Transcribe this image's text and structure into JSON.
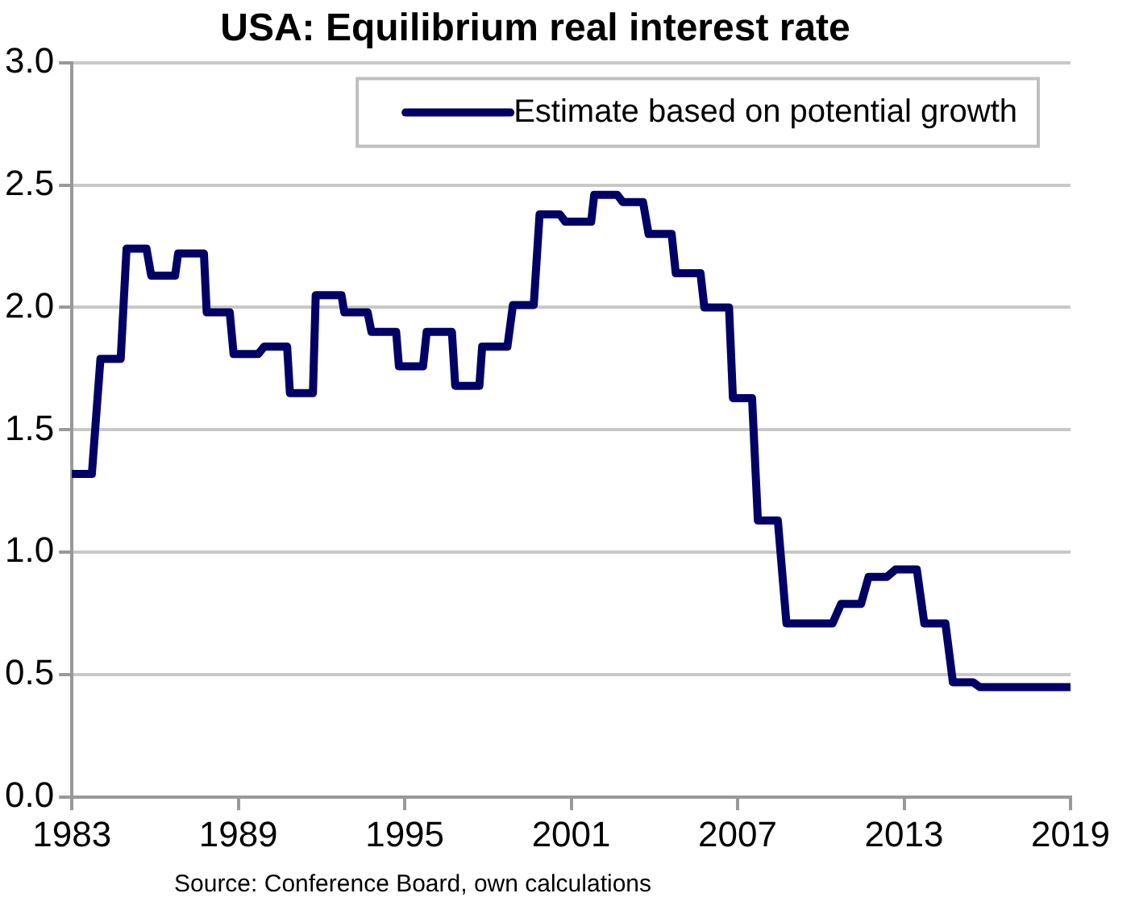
{
  "chart_data": {
    "type": "line",
    "title": "USA: Equilibrium real interest rate",
    "x": [
      1983,
      1983.72,
      1984.03,
      1984.76,
      1984.97,
      1985.69,
      1985.86,
      1986.72,
      1986.83,
      1987.76,
      1987.86,
      1988.69,
      1988.83,
      1989.72,
      1989.93,
      1990.76,
      1990.86,
      1991.69,
      1991.79,
      1992.72,
      1992.82,
      1993.66,
      1993.8,
      1994.69,
      1994.79,
      1995.66,
      1995.79,
      1996.7,
      1996.82,
      1997.69,
      1997.79,
      1998.7,
      1998.9,
      1999.65,
      1999.86,
      2000.59,
      2000.79,
      2001.72,
      2001.83,
      2002.66,
      2002.86,
      2003.59,
      2003.79,
      2004.62,
      2004.77,
      2005.66,
      2005.8,
      2006.69,
      2006.83,
      2007.52,
      2007.73,
      2008.45,
      2008.76,
      2010.42,
      2010.73,
      2011.45,
      2011.72,
      2012.38,
      2012.69,
      2013.46,
      2013.73,
      2014.49,
      2014.76,
      2015.48,
      2015.73,
      2019
    ],
    "series": [
      {
        "name": "Estimate based on potential growth",
        "color": "#000066",
        "values": [
          1.32,
          1.32,
          1.79,
          1.79,
          2.24,
          2.24,
          2.13,
          2.13,
          2.22,
          2.22,
          1.98,
          1.98,
          1.81,
          1.81,
          1.84,
          1.84,
          1.65,
          1.65,
          2.05,
          2.05,
          1.98,
          1.98,
          1.9,
          1.9,
          1.76,
          1.76,
          1.9,
          1.9,
          1.68,
          1.68,
          1.84,
          1.84,
          2.01,
          2.01,
          2.38,
          2.38,
          2.35,
          2.35,
          2.46,
          2.46,
          2.43,
          2.43,
          2.3,
          2.3,
          2.14,
          2.14,
          2.0,
          2.0,
          1.63,
          1.63,
          1.13,
          1.13,
          0.71,
          0.71,
          0.79,
          0.79,
          0.9,
          0.9,
          0.93,
          0.93,
          0.71,
          0.71,
          0.47,
          0.47,
          0.45,
          0.45
        ]
      }
    ],
    "xlim": [
      1983,
      2019
    ],
    "xticks": [
      1983,
      1989,
      1995,
      2001,
      2007,
      2013,
      2019
    ],
    "ylim": [
      0,
      3
    ],
    "yticks": [
      {
        "value": 0,
        "label": "0.0"
      },
      {
        "value": 0.5,
        "label": "0.5"
      },
      {
        "value": 1,
        "label": "1.0"
      },
      {
        "value": 1.5,
        "label": "1.5"
      },
      {
        "value": 2,
        "label": "2.0"
      },
      {
        "value": 2.5,
        "label": "2.5"
      },
      {
        "value": 3,
        "label": "3.0"
      }
    ],
    "grid": "y",
    "legend": "top right",
    "marker": "none",
    "line_style": "solid",
    "annotations": [
      "Source: Conference Board, own calculations"
    ]
  }
}
